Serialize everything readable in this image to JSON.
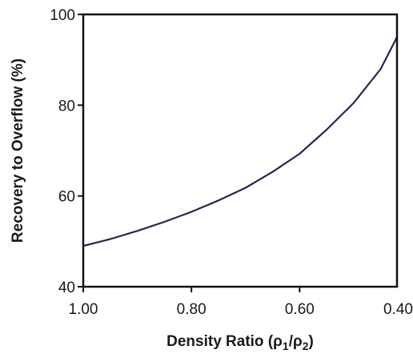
{
  "chart_data": {
    "type": "line",
    "title": "",
    "xlabel_main": "Density Ratio (ρ",
    "xlabel_sub1": "1",
    "xlabel_slash": "/ρ",
    "xlabel_sub2": "2",
    "xlabel_close": ")",
    "ylabel": "Recovery to Overflow (%)",
    "x_reversed": true,
    "xlim": [
      1.0,
      0.42
    ],
    "ylim": [
      40,
      100
    ],
    "xticks": [
      {
        "value": 1.0,
        "label": "1.00"
      },
      {
        "value": 0.8,
        "label": "0.80"
      },
      {
        "value": 0.6,
        "label": "0.60"
      },
      {
        "value": 0.4,
        "label": "0.40"
      }
    ],
    "yticks": [
      {
        "value": 40,
        "label": "40"
      },
      {
        "value": 60,
        "label": "60"
      },
      {
        "value": 80,
        "label": "80"
      },
      {
        "value": 100,
        "label": "100"
      }
    ],
    "grid": false,
    "line_color": "#1f2a4d",
    "series": [
      {
        "x": [
          1.0,
          0.95,
          0.9,
          0.85,
          0.8,
          0.75,
          0.7,
          0.65,
          0.6,
          0.55,
          0.5,
          0.45,
          0.42
        ],
        "y": [
          49,
          50.5,
          52.3,
          54.3,
          56.5,
          59,
          61.8,
          65.3,
          69.3,
          74.6,
          80.5,
          88,
          95
        ]
      }
    ]
  }
}
